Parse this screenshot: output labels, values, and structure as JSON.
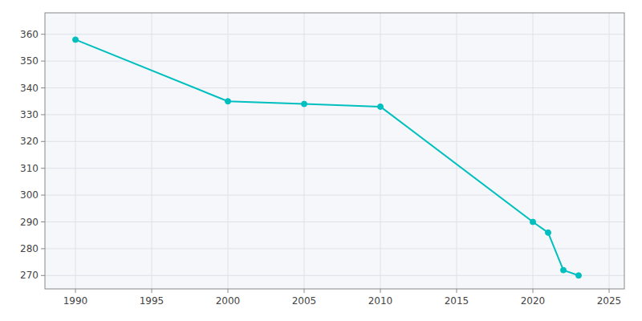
{
  "chart_data": {
    "type": "line",
    "x": [
      1990,
      2000,
      2005,
      2010,
      2020,
      2021,
      2022,
      2023
    ],
    "values": [
      358,
      335,
      334,
      333,
      290,
      286,
      272,
      270
    ],
    "color": "#00BFBF",
    "marker": "circle",
    "xlim": [
      1988,
      2026
    ],
    "ylim": [
      265,
      368
    ],
    "xticks": [
      1990,
      1995,
      2000,
      2005,
      2010,
      2015,
      2020,
      2025
    ],
    "yticks": [
      270,
      280,
      290,
      300,
      310,
      320,
      330,
      340,
      350,
      360
    ],
    "grid": true
  }
}
